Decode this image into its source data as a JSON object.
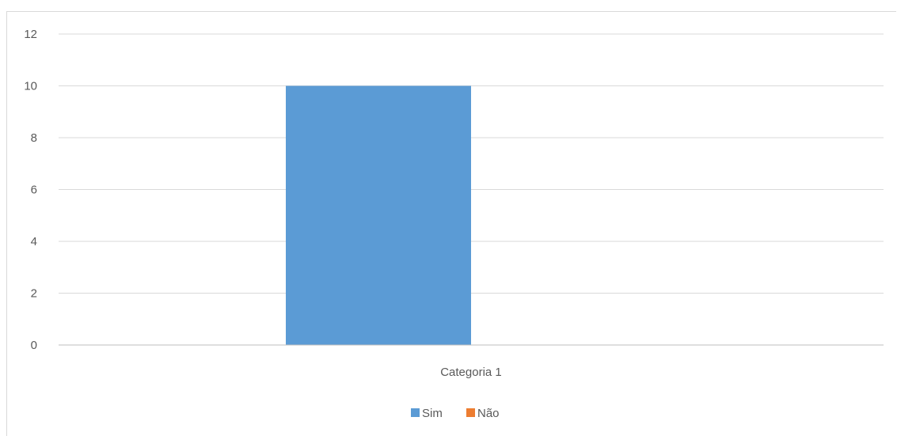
{
  "chart_data": {
    "type": "bar",
    "categories": [
      "Categoria 1"
    ],
    "series": [
      {
        "name": "Sim",
        "values": [
          10
        ],
        "color": "#5B9BD5"
      },
      {
        "name": "Não",
        "values": [
          0
        ],
        "color": "#ED7D31"
      }
    ],
    "yticks": [
      "0",
      "2",
      "4",
      "6",
      "8",
      "10",
      "12"
    ],
    "ylim": [
      0,
      12
    ],
    "grid": true,
    "legend_position": "bottom",
    "title": "",
    "xlabel": "",
    "ylabel": ""
  }
}
